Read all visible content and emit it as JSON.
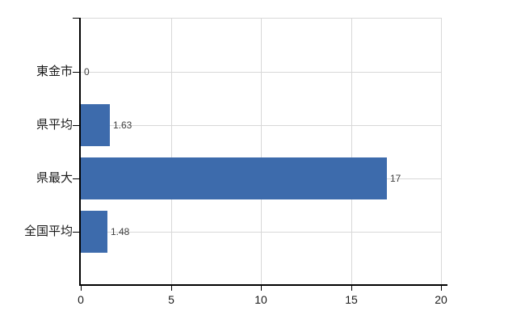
{
  "chart_data": {
    "type": "bar",
    "orientation": "horizontal",
    "title": "",
    "categories": [
      "東金市",
      "県平均",
      "県最大",
      "全国平均"
    ],
    "values": [
      0,
      1.63,
      17,
      1.48
    ],
    "value_labels": [
      "0",
      "1.63",
      "17",
      "1.48"
    ],
    "xlim": [
      0,
      20
    ],
    "x_tick_values": [
      0,
      5,
      10,
      15,
      20
    ],
    "x_ticks": [
      "0",
      "5",
      "10",
      "15",
      "20"
    ],
    "grid": true,
    "legend": "none",
    "colors": {
      "bar": "#3D6BAC",
      "grid": "#D8D8D8",
      "axis": "#000000",
      "value_label": "#3F3F3F",
      "tick_label": "#1A1A1A",
      "background": "#FFFFFF"
    }
  }
}
